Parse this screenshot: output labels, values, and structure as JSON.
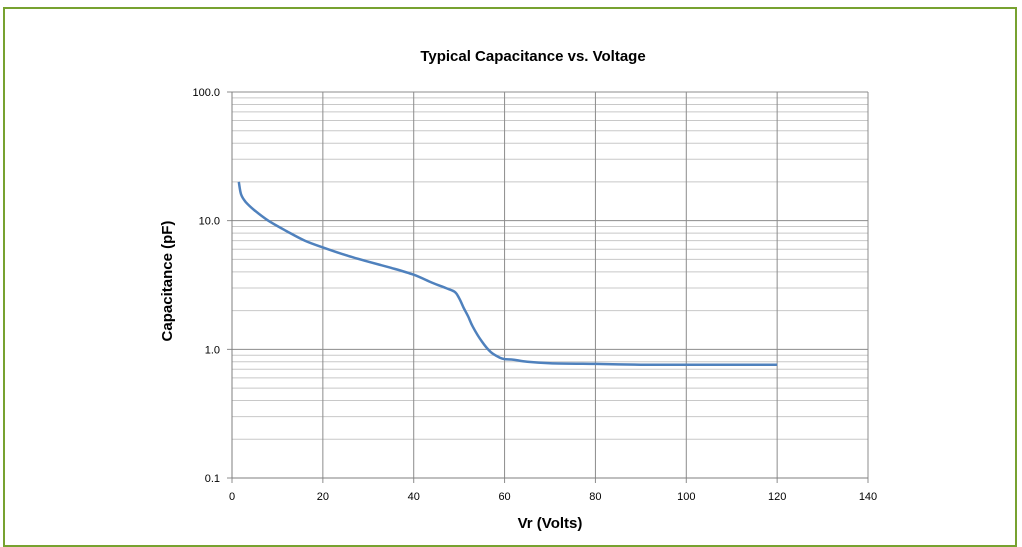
{
  "chart_data": {
    "type": "line",
    "title": "Typical Capacitance vs. Voltage",
    "xlabel": "Vr  (Volts)",
    "ylabel": "Capacitance (pF)",
    "xlim": [
      0,
      140
    ],
    "ylim": [
      0.1,
      100
    ],
    "y_scale": "log",
    "grid": true,
    "legend": "none",
    "x_ticks": [
      "0",
      "20",
      "40",
      "60",
      "80",
      "100",
      "120",
      "140"
    ],
    "y_ticks": [
      "0.1",
      "1.0",
      "10.0",
      "100.0"
    ],
    "series": [
      {
        "color": "#4f81bd",
        "x": [
          1.5,
          2,
          3,
          5,
          8,
          12,
          16,
          20,
          25,
          30,
          35,
          40,
          44,
          47,
          49,
          50,
          51,
          52,
          53,
          55,
          57,
          59,
          60,
          62,
          65,
          70,
          80,
          90,
          100,
          110,
          120
        ],
        "y": [
          20,
          16,
          14,
          12,
          10,
          8.3,
          7.0,
          6.2,
          5.4,
          4.8,
          4.3,
          3.8,
          3.3,
          3.0,
          2.8,
          2.5,
          2.1,
          1.8,
          1.5,
          1.15,
          0.95,
          0.86,
          0.84,
          0.83,
          0.8,
          0.78,
          0.77,
          0.76,
          0.76,
          0.76,
          0.76
        ]
      }
    ]
  }
}
